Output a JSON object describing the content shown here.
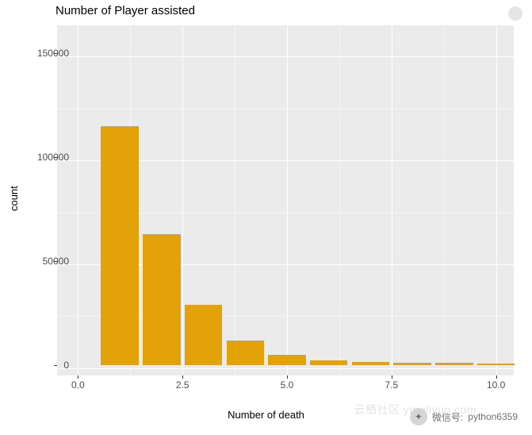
{
  "chart": {
    "type": "histogram",
    "title": "Number of Player assisted",
    "xlabel": "Number of death",
    "ylabel": "count",
    "title_fontsize": 15,
    "label_fontsize": 13,
    "tick_fontsize": 12,
    "background_color": "#ebebeb",
    "grid_color": "#ffffff",
    "bar_color": "#e2a208",
    "tick_color": "#4d4d4d",
    "x_ticks": [
      0.0,
      2.5,
      5.0,
      7.5,
      10.0
    ],
    "y_ticks": [
      0,
      50000,
      100000,
      150000
    ],
    "y_tick_labels": [
      "0",
      "50000",
      "100000",
      "150000"
    ],
    "x_tick_labels": [
      "0.0",
      "2.5",
      "5.0",
      "7.5",
      "10.0"
    ],
    "xlim": [
      -0.5,
      10.5
    ],
    "ylim": [
      -5000,
      165000
    ],
    "bar_width": 0.9,
    "bars": [
      {
        "x": 1,
        "count": 115000
      },
      {
        "x": 2,
        "count": 63000
      },
      {
        "x": 3,
        "count": 29000
      },
      {
        "x": 4,
        "count": 12000
      },
      {
        "x": 5,
        "count": 5000
      },
      {
        "x": 6,
        "count": 2200
      },
      {
        "x": 7,
        "count": 1500
      },
      {
        "x": 8,
        "count": 1200
      },
      {
        "x": 9,
        "count": 1000
      },
      {
        "x": 10,
        "count": 800
      }
    ]
  },
  "watermark": {
    "label": "微信号:",
    "value": "python6359",
    "faint_text": "云栖社区 yq.aliyun.com"
  }
}
